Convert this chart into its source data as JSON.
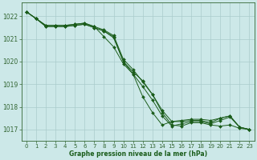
{
  "bg_color": "#cce8e8",
  "grid_color": "#aacccc",
  "line_color": "#1a5c1a",
  "xlabel": "Graphe pression niveau de la mer (hPa)",
  "xlabel_color": "#1a5c1a",
  "tick_color": "#336633",
  "xlim": [
    -0.5,
    23.5
  ],
  "ylim": [
    1016.5,
    1022.6
  ],
  "yticks": [
    1017,
    1018,
    1019,
    1020,
    1021,
    1022
  ],
  "xticks": [
    0,
    1,
    2,
    3,
    4,
    5,
    6,
    7,
    8,
    9,
    10,
    11,
    12,
    13,
    14,
    15,
    16,
    17,
    18,
    19,
    20,
    21,
    22,
    23
  ],
  "series": [
    {
      "x": [
        0,
        1,
        2,
        3,
        4,
        5,
        6,
        7,
        8,
        9,
        10,
        11,
        12,
        13,
        14,
        15,
        16,
        17,
        18,
        19,
        20,
        21,
        22,
        23
      ],
      "y": [
        1022.2,
        1021.9,
        1021.55,
        1021.55,
        1021.55,
        1021.6,
        1021.65,
        1021.5,
        1021.35,
        1021.1,
        1020.0,
        1019.55,
        1019.15,
        1018.55,
        1017.75,
        1017.2,
        1017.15,
        1017.3,
        1017.3,
        1017.2,
        1017.15,
        1017.2,
        1017.05,
        1017.0
      ]
    },
    {
      "x": [
        0,
        1,
        2,
        3,
        4,
        5,
        6,
        7,
        8,
        9,
        10,
        11,
        12,
        13,
        14,
        15,
        16,
        17,
        18,
        19,
        20,
        21,
        22,
        23
      ],
      "y": [
        1022.2,
        1021.9,
        1021.55,
        1021.55,
        1021.55,
        1021.6,
        1021.65,
        1021.5,
        1021.35,
        1021.05,
        1020.0,
        1019.45,
        1018.9,
        1018.3,
        1017.6,
        1017.15,
        1017.25,
        1017.35,
        1017.35,
        1017.25,
        1017.4,
        1017.55,
        1017.1,
        1017.0
      ]
    },
    {
      "x": [
        0,
        1,
        2,
        3,
        4,
        5,
        6,
        7,
        8,
        9,
        10,
        11,
        12,
        13,
        14,
        15,
        16,
        17,
        18,
        19,
        20,
        21,
        22,
        23
      ],
      "y": [
        1022.2,
        1021.9,
        1021.6,
        1021.6,
        1021.6,
        1021.65,
        1021.7,
        1021.55,
        1021.4,
        1021.15,
        1020.1,
        1019.65,
        1019.1,
        1018.55,
        1017.85,
        1017.35,
        1017.35,
        1017.4,
        1017.4,
        1017.3,
        1017.5,
        1017.6,
        1017.1,
        1017.0
      ]
    },
    {
      "x": [
        0,
        1,
        2,
        3,
        4,
        5,
        6,
        7,
        8,
        9,
        10,
        11,
        12,
        13,
        14,
        15,
        16,
        17,
        18,
        19,
        20,
        21,
        22,
        23
      ],
      "y": [
        1022.2,
        1021.9,
        1021.6,
        1021.6,
        1021.6,
        1021.65,
        1021.7,
        1021.55,
        1021.1,
        1020.65,
        1019.9,
        1019.45,
        1018.45,
        1017.75,
        1017.2,
        1017.35,
        1017.4,
        1017.45,
        1017.45,
        1017.4,
        1017.5,
        1017.6,
        1017.1,
        1017.0
      ]
    }
  ]
}
